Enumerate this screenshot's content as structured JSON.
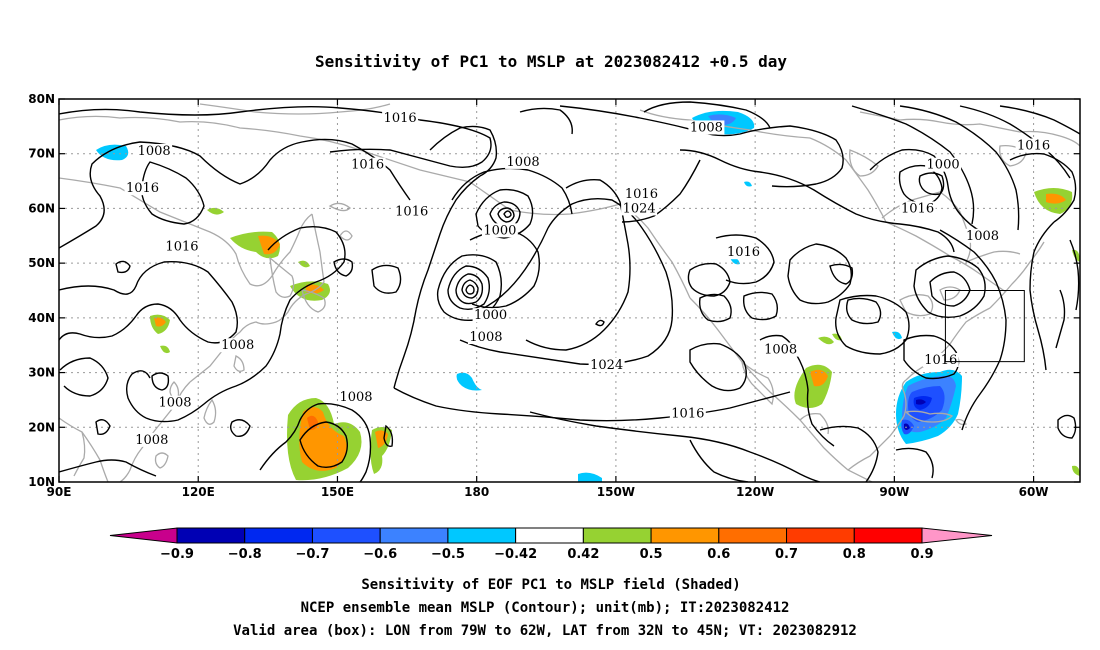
{
  "title": "Sensitivity of PC1 to MSLP at 2023082412 +0.5 day",
  "map": {
    "lon_range": [
      90,
      310
    ],
    "lat_range": [
      10,
      80
    ],
    "lat_ticks": [
      {
        "value": 80,
        "label": "80N"
      },
      {
        "value": 70,
        "label": "70N"
      },
      {
        "value": 60,
        "label": "60N"
      },
      {
        "value": 50,
        "label": "50N"
      },
      {
        "value": 40,
        "label": "40N"
      },
      {
        "value": 30,
        "label": "30N"
      },
      {
        "value": 20,
        "label": "20N"
      },
      {
        "value": 10,
        "label": "10N"
      }
    ],
    "lon_ticks": [
      {
        "value": 90,
        "label": "90E"
      },
      {
        "value": 120,
        "label": "120E"
      },
      {
        "value": 150,
        "label": "150E"
      },
      {
        "value": 180,
        "label": "180"
      },
      {
        "value": 210,
        "label": "150W"
      },
      {
        "value": 240,
        "label": "120W"
      },
      {
        "value": 270,
        "label": "90W"
      },
      {
        "value": 300,
        "label": "60W"
      }
    ],
    "grid_lats": [
      20,
      30,
      40,
      50,
      60,
      70
    ],
    "grid_lons": [
      120,
      150,
      180,
      210,
      240,
      270,
      300
    ],
    "contour_labels": [
      {
        "text": "1016",
        "lon": 163.5,
        "lat": 76.5
      },
      {
        "text": "1008",
        "lon": 110.5,
        "lat": 70.5
      },
      {
        "text": "1016",
        "lon": 108.0,
        "lat": 63.7
      },
      {
        "text": "1016",
        "lon": 156.5,
        "lat": 68.0
      },
      {
        "text": "1016",
        "lon": 166.0,
        "lat": 59.4
      },
      {
        "text": "1016",
        "lon": 116.5,
        "lat": 53.0
      },
      {
        "text": "1008",
        "lon": 190.0,
        "lat": 68.5
      },
      {
        "text": "1000",
        "lon": 185.0,
        "lat": 56.0
      },
      {
        "text": "1016",
        "lon": 215.5,
        "lat": 62.6
      },
      {
        "text": "1024",
        "lon": 215.0,
        "lat": 60.0
      },
      {
        "text": "1008",
        "lon": 229.5,
        "lat": 74.8
      },
      {
        "text": "1000",
        "lon": 280.5,
        "lat": 68.0
      },
      {
        "text": "1016",
        "lon": 275.0,
        "lat": 60.0
      },
      {
        "text": "1008",
        "lon": 289.0,
        "lat": 55.0
      },
      {
        "text": "1016",
        "lon": 300.0,
        "lat": 71.5
      },
      {
        "text": "1016",
        "lon": 237.5,
        "lat": 52.0
      },
      {
        "text": "1000",
        "lon": 183.0,
        "lat": 40.5
      },
      {
        "text": "1008",
        "lon": 182.0,
        "lat": 36.5
      },
      {
        "text": "1024",
        "lon": 208.0,
        "lat": 31.4
      },
      {
        "text": "1016",
        "lon": 225.5,
        "lat": 22.5
      },
      {
        "text": "1008",
        "lon": 245.5,
        "lat": 34.2
      },
      {
        "text": "1016",
        "lon": 280.0,
        "lat": 32.3
      },
      {
        "text": "1008",
        "lon": 128.5,
        "lat": 35.0
      },
      {
        "text": "1008",
        "lon": 115.0,
        "lat": 24.5
      },
      {
        "text": "1008",
        "lon": 110.0,
        "lat": 17.7
      },
      {
        "text": "1008",
        "lon": 154.0,
        "lat": 25.5
      }
    ],
    "valid_box": {
      "lon_min": 281,
      "lon_max": 298,
      "lat_min": 32,
      "lat_max": 45
    }
  },
  "colorbar": {
    "labels": [
      "-0.9",
      "-0.8",
      "-0.7",
      "-0.6",
      "-0.5",
      "-0.42",
      "0.42",
      "0.5",
      "0.6",
      "0.7",
      "0.8",
      "0.9"
    ],
    "colors": [
      "#0000b4",
      "#0028f0",
      "#1e50ff",
      "#3c82ff",
      "#00c8ff",
      "#ffffff",
      "#96d232",
      "#ff9600",
      "#ff6e00",
      "#ff3c00",
      "#ff0000"
    ],
    "low_end_color": "#c8008c",
    "high_end_color": "#ff96c8"
  },
  "captions": [
    "Sensitivity of EOF PC1 to MSLP field (Shaded)",
    "NCEP ensemble mean MSLP (Contour); unit(mb); IT:2023082412",
    "Valid area (box): LON from 79W to 62W, LAT from 32N to 45N; VT: 2023082912"
  ]
}
